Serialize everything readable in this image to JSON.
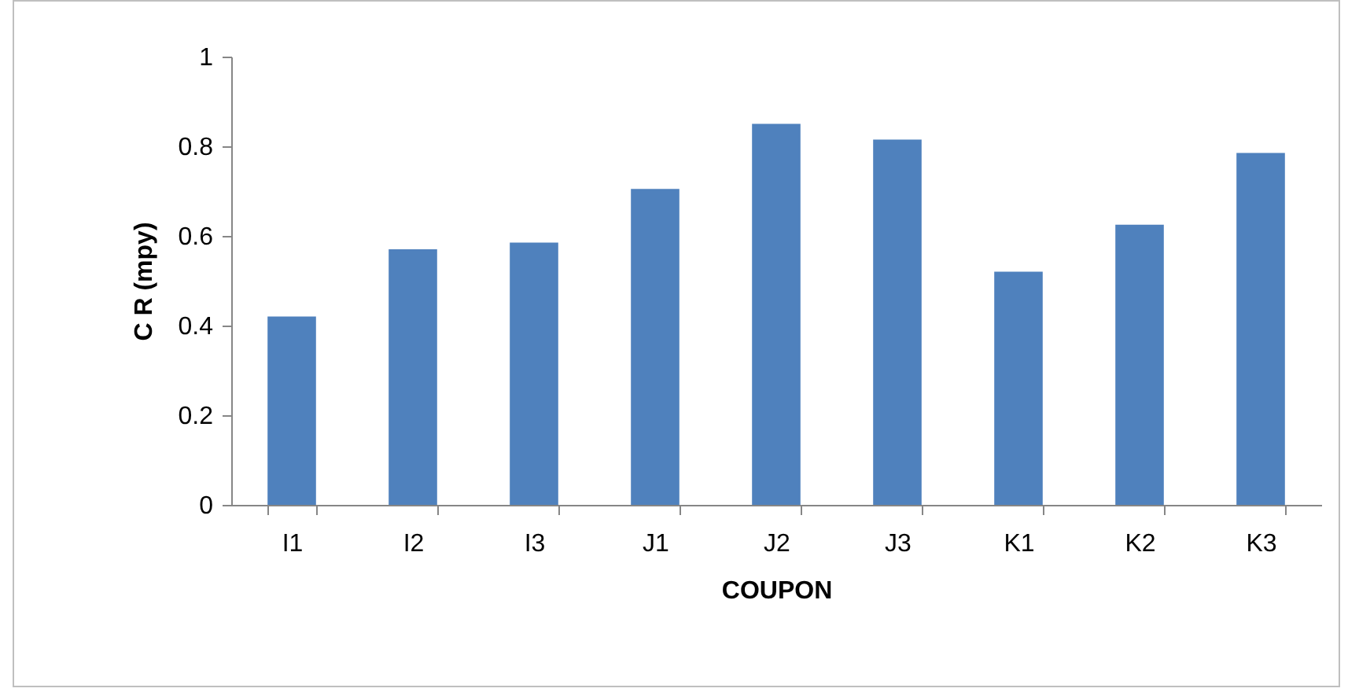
{
  "chart_data": {
    "type": "bar",
    "xlabel": "COUPON",
    "ylabel": "C R (mpy)",
    "categories": [
      "I1",
      "I2",
      "I3",
      "J1",
      "J2",
      "J3",
      "K1",
      "K2",
      "K3"
    ],
    "values": [
      0.42,
      0.57,
      0.585,
      0.705,
      0.85,
      0.815,
      0.52,
      0.625,
      0.785
    ],
    "color": "#4f81bd",
    "ylim": [
      0,
      1
    ],
    "yticks": [
      0,
      0.2,
      0.4,
      0.6,
      0.8,
      1
    ],
    "grid": false
  }
}
